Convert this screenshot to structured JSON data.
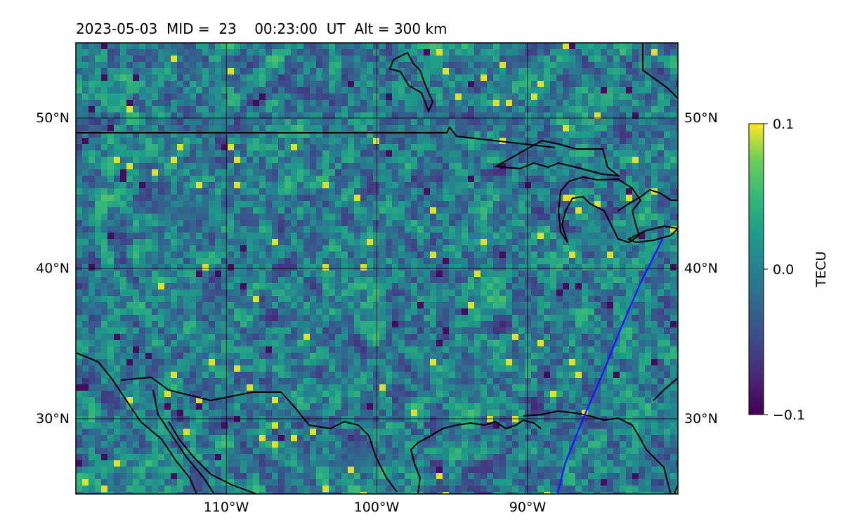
{
  "title": "2023-05-03  MID =  23    00:23:00  UT  Alt = 300 km",
  "map": {
    "lon_range": [
      -120,
      -80
    ],
    "lat_range": [
      25,
      55
    ],
    "grid_lons": [
      -110,
      -100,
      -90
    ],
    "grid_lats": [
      30,
      40,
      50
    ],
    "x_tick_labels": [
      "110°W",
      "100°W",
      "90°W"
    ],
    "y_tick_labels": [
      "30°N",
      "40°N",
      "50°N"
    ],
    "field": "TEC perturbation",
    "colormap": "viridis",
    "coastline_color": "#000000",
    "track_color": "#1a1aff"
  },
  "colorbar": {
    "label": "TECU",
    "min": -0.1,
    "max": 0.1,
    "tick_labels": [
      "0.1",
      "0.0",
      "−0.1"
    ],
    "tick_values": [
      0.1,
      0.0,
      -0.1
    ]
  },
  "satellite_track": {
    "points": [
      {
        "lon": -81.0,
        "lat": 42.0
      },
      {
        "lon": -82.5,
        "lat": 39.0
      },
      {
        "lon": -83.8,
        "lat": 36.0
      },
      {
        "lon": -85.0,
        "lat": 33.0
      },
      {
        "lon": -86.3,
        "lat": 30.0
      },
      {
        "lon": -87.5,
        "lat": 27.0
      },
      {
        "lon": -88.0,
        "lat": 25.0
      }
    ]
  }
}
